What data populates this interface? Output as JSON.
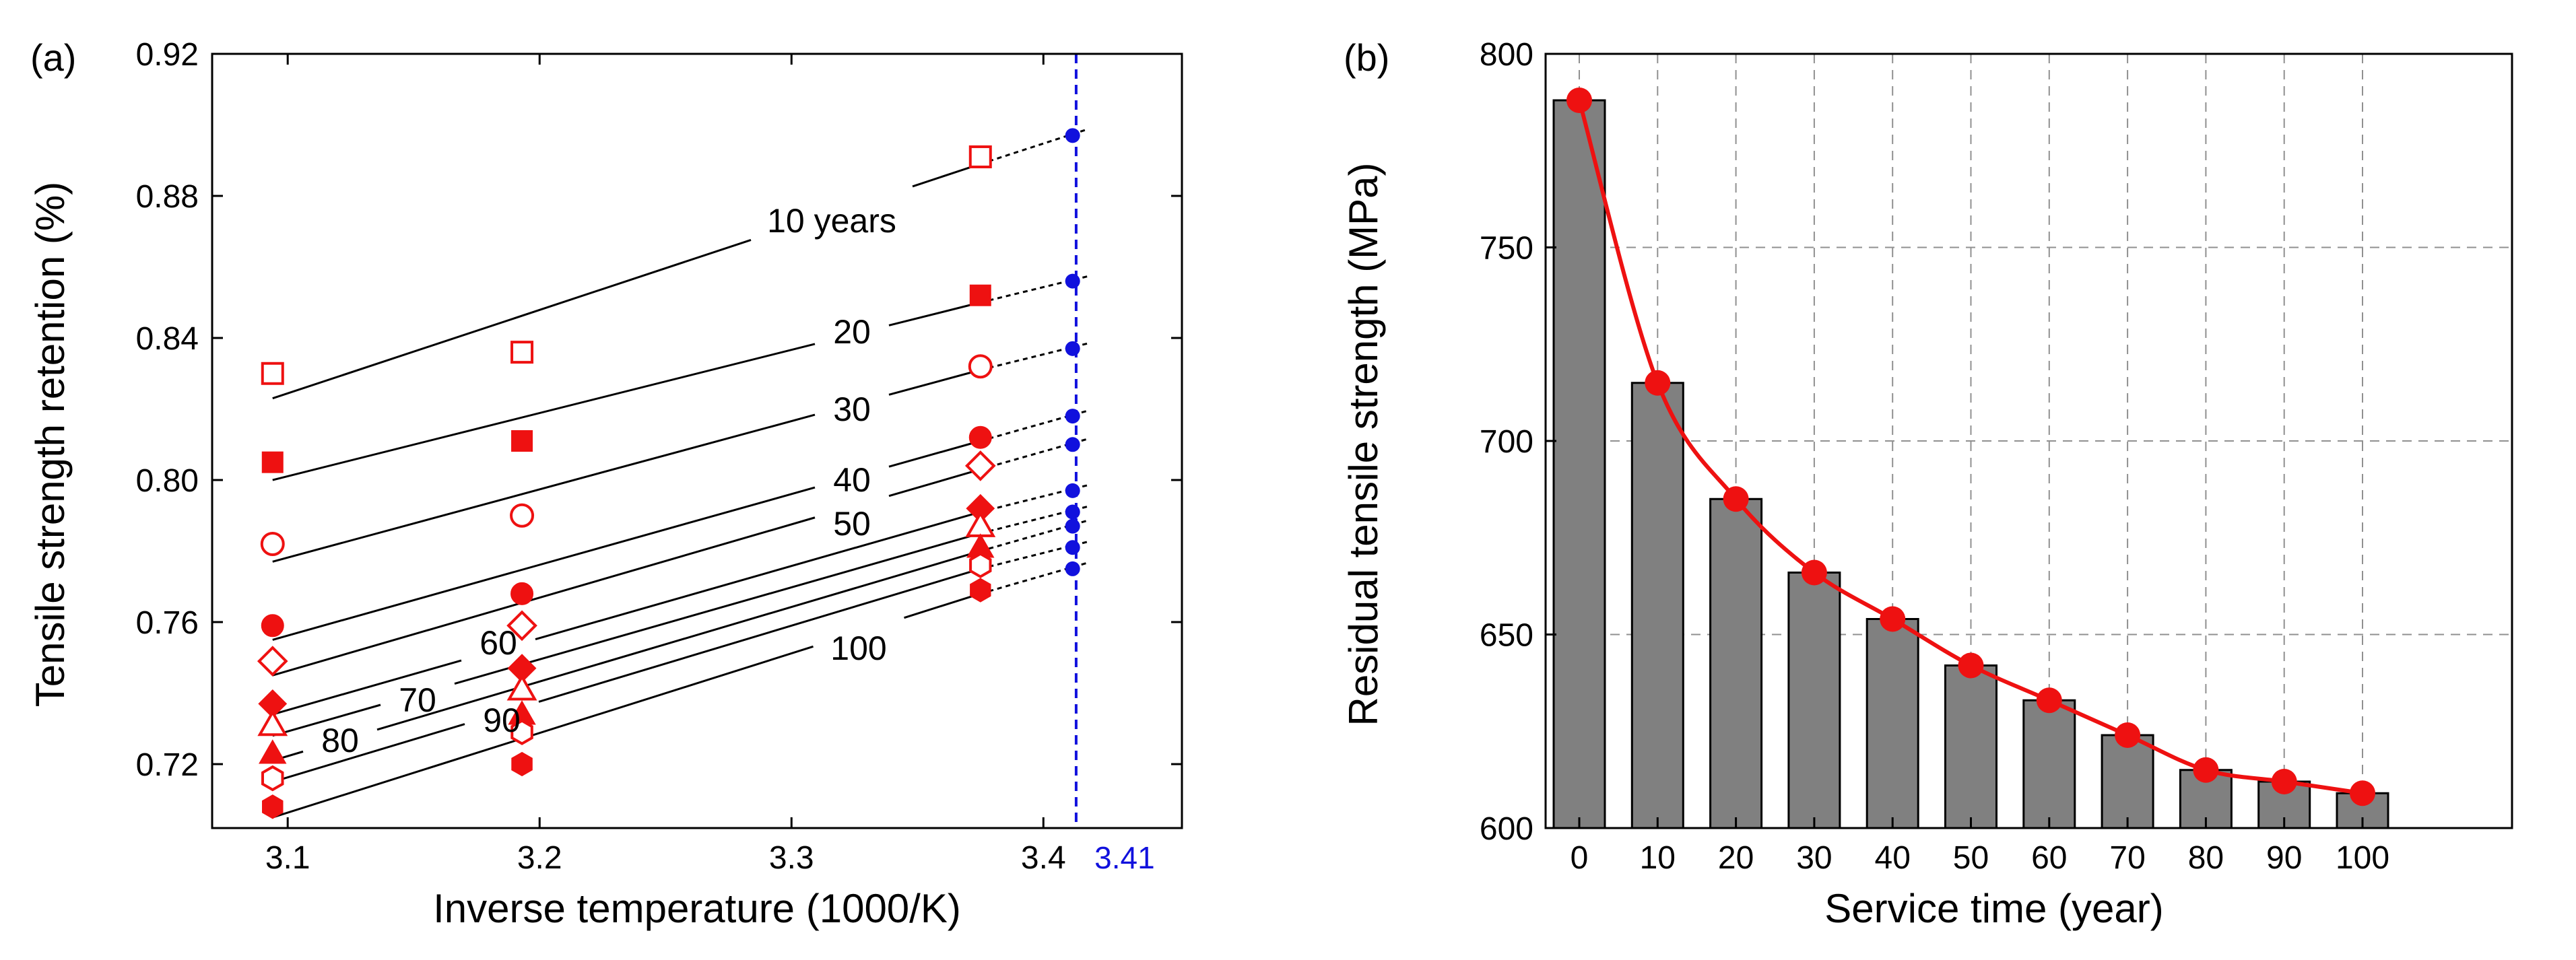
{
  "figure": {
    "colors": {
      "red": "#ee1111",
      "blue": "#1111dd",
      "bar": "#808080",
      "grid": "#909090",
      "axis": "#000000"
    }
  },
  "chart_data": [
    {
      "type": "scatter",
      "panel_label": "(a)",
      "xlabel": "Inverse temperature (1000/K)",
      "ylabel": "Tensile strength retention (%)",
      "xlim": [
        3.07,
        3.455
      ],
      "ylim": [
        0.702,
        0.92
      ],
      "xticks": [
        "3.1",
        "3.2",
        "3.3",
        "3.4"
      ],
      "xtick_values": [
        3.1,
        3.2,
        3.3,
        3.4
      ],
      "yticks": [
        "0.72",
        "0.76",
        "0.80",
        "0.84",
        "0.88",
        "0.92"
      ],
      "ytick_values": [
        0.72,
        0.76,
        0.8,
        0.84,
        0.88,
        0.92
      ],
      "x_points": [
        3.094,
        3.193,
        3.375
      ],
      "fit_range": [
        3.094,
        3.375
      ],
      "extrapolate_to": 3.41,
      "vline": {
        "x": 3.413,
        "label": "3.41"
      },
      "series": [
        {
          "name": "10 years",
          "label": "10 years",
          "marker": "square-open",
          "points": [
            0.83,
            0.836,
            0.891
          ],
          "fit": [
            0.823,
            0.889
          ],
          "predicted": 0.897
        },
        {
          "name": "20",
          "label": "20",
          "marker": "square-filled",
          "points": [
            0.805,
            0.811,
            0.852
          ],
          "fit": [
            0.8,
            0.85
          ],
          "predicted": 0.856
        },
        {
          "name": "30",
          "label": "30",
          "marker": "circle-open",
          "points": [
            0.782,
            0.79,
            0.832
          ],
          "fit": [
            0.777,
            0.831
          ],
          "predicted": 0.837
        },
        {
          "name": "40",
          "label": "40",
          "marker": "circle-filled",
          "points": [
            0.759,
            0.768,
            0.812
          ],
          "fit": [
            0.755,
            0.811
          ],
          "predicted": 0.818
        },
        {
          "name": "50",
          "label": "50",
          "marker": "diamond-open",
          "points": [
            0.749,
            0.759,
            0.804
          ],
          "fit": [
            0.745,
            0.803
          ],
          "predicted": 0.81
        },
        {
          "name": "60",
          "label": "60",
          "marker": "diamond-filled",
          "points": [
            0.737,
            0.747,
            0.792
          ],
          "fit": [
            0.734,
            0.791
          ],
          "predicted": 0.797
        },
        {
          "name": "70",
          "label": "70",
          "marker": "triangle-open",
          "points": [
            0.731,
            0.741,
            0.787
          ],
          "fit": [
            0.728,
            0.785
          ],
          "predicted": 0.791
        },
        {
          "name": "80",
          "label": "80",
          "marker": "triangle-filled",
          "points": [
            0.723,
            0.734,
            0.781
          ],
          "fit": [
            0.721,
            0.78
          ],
          "predicted": 0.787
        },
        {
          "name": "90",
          "label": "90",
          "marker": "hexagon-open",
          "points": [
            0.716,
            0.729,
            0.776
          ],
          "fit": [
            0.715,
            0.775
          ],
          "predicted": 0.781
        },
        {
          "name": "100",
          "label": "100",
          "marker": "hexagon-filled",
          "points": [
            0.708,
            0.72,
            0.769
          ],
          "fit": [
            0.705,
            0.768
          ],
          "predicted": 0.775
        }
      ]
    },
    {
      "type": "bar",
      "panel_label": "(b)",
      "xlabel": "Service time (year)",
      "ylabel": "Residual tensile strength (MPa)",
      "categories": [
        "0",
        "10",
        "20",
        "30",
        "40",
        "50",
        "60",
        "70",
        "80",
        "90",
        "100"
      ],
      "values": [
        788,
        715,
        685,
        666,
        654,
        642,
        633,
        624,
        615,
        612,
        609
      ],
      "line_values": [
        788,
        715,
        685,
        666,
        654,
        642,
        633,
        624,
        615,
        612,
        609
      ],
      "ylim": [
        600,
        800
      ],
      "yticks": [
        "600",
        "650",
        "700",
        "750",
        "800"
      ],
      "ytick_values": [
        600,
        650,
        700,
        750,
        800
      ],
      "grid": true
    }
  ]
}
